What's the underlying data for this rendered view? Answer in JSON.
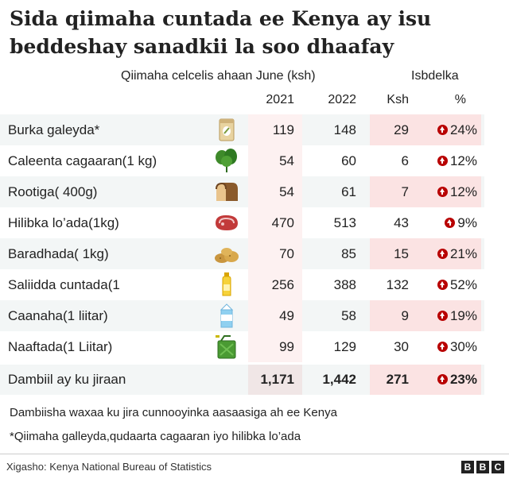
{
  "title": "Sida qiimaha cuntada ee Kenya ay isu beddeshay sanadkii la soo dhaafay",
  "colors": {
    "band": "#f3f6f6",
    "price_shade": "#fdf1f1",
    "change_shade": "#fbe3e3",
    "up_arrow": "#b80000"
  },
  "chart_data": {
    "type": "table",
    "header_price": "Qiimaha celcelis ahaan June (ksh)",
    "header_change": "Isbdelka",
    "columns": [
      "2021",
      "2022",
      "Ksh",
      "%"
    ],
    "rows": [
      {
        "label": "Burka galeyda*",
        "icon": "flour-bag-icon",
        "v2021": "119",
        "v2022": "148",
        "ksh": "29",
        "pct": "24%"
      },
      {
        "label": "Caleenta cagaaran(1 kg)",
        "icon": "leafy-greens-icon",
        "v2021": "54",
        "v2022": "60",
        "ksh": "6",
        "pct": "12%"
      },
      {
        "label": "Rootiga( 400g)",
        "icon": "bread-loaf-icon",
        "v2021": "54",
        "v2022": "61",
        "ksh": "7",
        "pct": "12%"
      },
      {
        "label": "Hilibka lo’ada(1kg)",
        "icon": "steak-icon",
        "v2021": "470",
        "v2022": "513",
        "ksh": "43",
        "pct": "9%"
      },
      {
        "label": "Baradhada( 1kg)",
        "icon": "potatoes-icon",
        "v2021": "70",
        "v2022": "85",
        "ksh": "15",
        "pct": "21%"
      },
      {
        "label": "Saliidda cuntada(1",
        "icon": "oil-bottle-icon",
        "v2021": "256",
        "v2022": "388",
        "ksh": "132",
        "pct": "52%"
      },
      {
        "label": "Caanaha(1  liitar)",
        "icon": "milk-carton-icon",
        "v2021": "49",
        "v2022": "58",
        "ksh": "9",
        "pct": "19%"
      },
      {
        "label": "Naaftada(1 Liitar)",
        "icon": "fuel-can-icon",
        "v2021": "99",
        "v2022": "129",
        "ksh": "30",
        "pct": "30%"
      }
    ],
    "total": {
      "label": "Dambiil ay ku jiraan",
      "v2021": "1,171",
      "v2022": "1,442",
      "ksh": "271",
      "pct": "23%"
    }
  },
  "notes": [
    "Dambiisha waxaa ku jira cunnooyinka aasaasiga ah ee Kenya",
    "*Qiimaha galleyda,qudaarta cagaaran iyo hilibka lo’ada"
  ],
  "source": "Xigasho: Kenya National Bureau of Statistics",
  "logo": [
    "B",
    "B",
    "C"
  ]
}
